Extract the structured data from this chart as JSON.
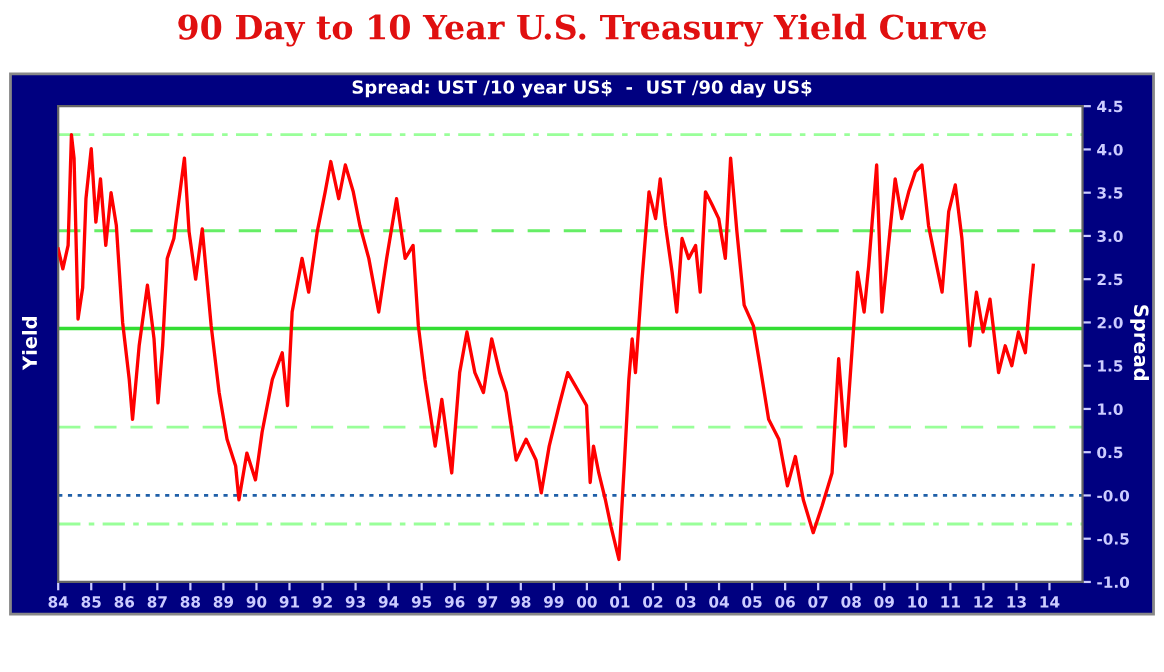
{
  "chart_data": {
    "type": "line",
    "title": "90 Day to 10 Year U.S. Treasury Yield Curve",
    "subtitle": "Spread: UST /10 year US$  -  UST /90 day US$",
    "ylabel": "Yield",
    "y2label": "Spread",
    "x": [
      1984.0,
      1984.14,
      1984.3,
      1984.4,
      1984.48,
      1984.6,
      1984.74,
      1984.84,
      1985.0,
      1985.14,
      1985.28,
      1985.44,
      1985.6,
      1985.76,
      1985.95,
      1986.15,
      1986.25,
      1986.45,
      1986.7,
      1986.9,
      1987.02,
      1987.16,
      1987.3,
      1987.5,
      1987.82,
      1987.96,
      1988.16,
      1988.36,
      1988.63,
      1988.87,
      1989.11,
      1989.37,
      1989.47,
      1989.71,
      1989.97,
      1990.17,
      1990.48,
      1990.78,
      1990.94,
      1991.08,
      1991.38,
      1991.58,
      1991.84,
      1992.08,
      1992.25,
      1992.49,
      1992.69,
      1992.93,
      1993.13,
      1993.4,
      1993.7,
      1993.94,
      1994.24,
      1994.5,
      1994.74,
      1994.9,
      1995.1,
      1995.41,
      1995.61,
      1995.91,
      1996.15,
      1996.37,
      1996.61,
      1996.87,
      1997.12,
      1997.36,
      1997.56,
      1997.86,
      1998.16,
      1998.46,
      1998.62,
      1998.86,
      1999.16,
      1999.42,
      1999.66,
      1999.99,
      2000.1,
      2000.2,
      2000.36,
      2000.56,
      2000.73,
      2000.97,
      2001.13,
      2001.27,
      2001.37,
      2001.47,
      2001.67,
      2001.88,
      2002.08,
      2002.22,
      2002.38,
      2002.58,
      2002.72,
      2002.88,
      2003.08,
      2003.29,
      2003.43,
      2003.59,
      2003.79,
      2003.99,
      2004.19,
      2004.35,
      2004.54,
      2004.76,
      2005.04,
      2005.24,
      2005.5,
      2005.81,
      2006.07,
      2006.31,
      2006.55,
      2006.85,
      2007.12,
      2007.42,
      2007.62,
      2007.82,
      2008.02,
      2008.19,
      2008.39,
      2008.53,
      2008.77,
      2008.93,
      2009.13,
      2009.33,
      2009.53,
      2009.74,
      2009.94,
      2010.14,
      2010.34,
      2010.54,
      2010.75,
      2010.95,
      2011.15,
      2011.35,
      2011.59,
      2011.79,
      2011.99,
      2012.2,
      2012.46,
      2012.66,
      2012.86,
      2013.06,
      2013.27,
      2013.41,
      2013.51
    ],
    "series": [
      {
        "color": "#ff0000",
        "values": [
          2.85,
          2.62,
          2.89,
          4.17,
          3.9,
          2.04,
          2.4,
          3.43,
          4.01,
          3.16,
          3.66,
          2.89,
          3.5,
          3.12,
          2.0,
          1.34,
          0.88,
          1.73,
          2.43,
          1.81,
          1.07,
          1.73,
          2.74,
          2.97,
          3.9,
          3.05,
          2.5,
          3.08,
          1.96,
          1.19,
          0.65,
          0.34,
          -0.05,
          0.49,
          0.18,
          0.73,
          1.34,
          1.65,
          1.04,
          2.12,
          2.74,
          2.35,
          3.05,
          3.51,
          3.86,
          3.43,
          3.82,
          3.51,
          3.12,
          2.74,
          2.12,
          2.74,
          3.43,
          2.74,
          2.89,
          1.96,
          1.34,
          0.57,
          1.11,
          0.26,
          1.42,
          1.89,
          1.42,
          1.19,
          1.81,
          1.42,
          1.19,
          0.41,
          0.65,
          0.41,
          0.03,
          0.57,
          1.04,
          1.42,
          1.26,
          1.04,
          0.15,
          0.57,
          0.26,
          -0.05,
          -0.36,
          -0.74,
          0.34,
          1.34,
          1.81,
          1.42,
          2.5,
          3.51,
          3.2,
          3.66,
          3.12,
          2.58,
          2.12,
          2.97,
          2.74,
          2.89,
          2.35,
          3.51,
          3.36,
          3.2,
          2.74,
          3.9,
          3.05,
          2.2,
          1.96,
          1.5,
          0.88,
          0.65,
          0.11,
          0.45,
          -0.05,
          -0.43,
          -0.12,
          0.26,
          1.58,
          0.57,
          1.65,
          2.58,
          2.12,
          2.66,
          3.82,
          2.12,
          2.89,
          3.66,
          3.2,
          3.51,
          3.74,
          3.82,
          3.12,
          2.74,
          2.35,
          3.28,
          3.59,
          2.97,
          1.73,
          2.35,
          1.89,
          2.27,
          1.42,
          1.73,
          1.5,
          1.89,
          1.65,
          2.27,
          2.66
        ]
      }
    ],
    "xlim": [
      1984,
      2015
    ],
    "xticks": [
      {
        "value": 1984,
        "label": "84"
      },
      {
        "value": 1985,
        "label": "85"
      },
      {
        "value": 1986,
        "label": "86"
      },
      {
        "value": 1987,
        "label": "87"
      },
      {
        "value": 1988,
        "label": "88"
      },
      {
        "value": 1989,
        "label": "89"
      },
      {
        "value": 1990,
        "label": "90"
      },
      {
        "value": 1991,
        "label": "91"
      },
      {
        "value": 1992,
        "label": "92"
      },
      {
        "value": 1993,
        "label": "93"
      },
      {
        "value": 1994,
        "label": "94"
      },
      {
        "value": 1995,
        "label": "95"
      },
      {
        "value": 1996,
        "label": "96"
      },
      {
        "value": 1997,
        "label": "97"
      },
      {
        "value": 1998,
        "label": "98"
      },
      {
        "value": 1999,
        "label": "99"
      },
      {
        "value": 2000,
        "label": "00"
      },
      {
        "value": 2001,
        "label": "01"
      },
      {
        "value": 2002,
        "label": "02"
      },
      {
        "value": 2003,
        "label": "03"
      },
      {
        "value": 2004,
        "label": "04"
      },
      {
        "value": 2005,
        "label": "05"
      },
      {
        "value": 2006,
        "label": "06"
      },
      {
        "value": 2007,
        "label": "07"
      },
      {
        "value": 2008,
        "label": "08"
      },
      {
        "value": 2009,
        "label": "09"
      },
      {
        "value": 2010,
        "label": "10"
      },
      {
        "value": 2011,
        "label": "11"
      },
      {
        "value": 2012,
        "label": "12"
      },
      {
        "value": 2013,
        "label": "13"
      },
      {
        "value": 2014,
        "label": "14"
      }
    ],
    "ylim": [
      -1.0,
      4.5
    ],
    "yticks": [
      4.5,
      {
        "value": 4.0,
        "label": "4.0"
      },
      3.5,
      {
        "value": 3.0,
        "label": "3.0"
      },
      2.5,
      {
        "value": 2.0,
        "label": "2.0"
      },
      1.5,
      {
        "value": 1.0,
        "label": "1.0"
      },
      0.5,
      {
        "value": 0,
        "label": "-0.0"
      },
      -0.5,
      {
        "value": -1.0,
        "label": "-1.0"
      }
    ],
    "ref_lines": [
      {
        "axis": "y",
        "value": 4.17,
        "color": "#99ff99",
        "line_style": "dashdot"
      },
      {
        "axis": "y",
        "value": 3.06,
        "color": "#66ee66",
        "line_style": "dashed"
      },
      {
        "axis": "y",
        "value": 1.93,
        "color": "#33dd33",
        "line_style": "solid"
      },
      {
        "axis": "y",
        "value": 0.79,
        "color": "#99ff99",
        "line_style": "dashed"
      },
      {
        "axis": "y",
        "value": 0,
        "color": "#1f5fa8",
        "line_style": "dotted"
      },
      {
        "axis": "y",
        "value": -0.33,
        "color": "#99ff99",
        "line_style": "dashdot"
      }
    ],
    "grid": false,
    "legend": false,
    "marker": "none",
    "line_style": "solid"
  }
}
